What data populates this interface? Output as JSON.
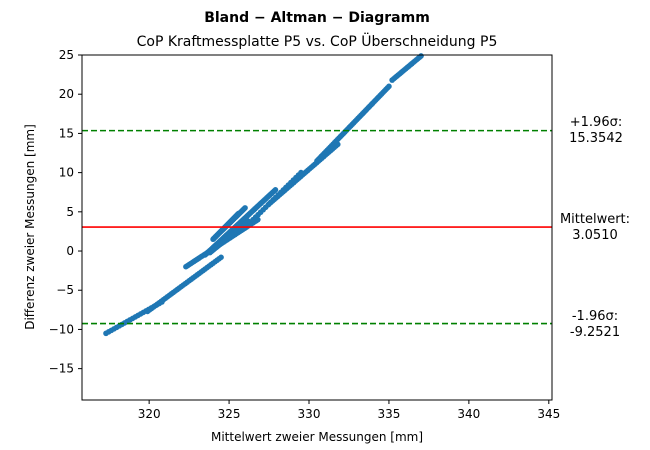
{
  "chart_data": {
    "type": "scatter",
    "title": "Bland − Altman − Diagramm",
    "subtitle": "CoP Kraftmessplatte P5 vs. CoP Überschneidung P5",
    "xlabel": "Mittelwert zweier Messungen [mm]",
    "ylabel": "Differenz zweier Messungen [mm]",
    "xlim": [
      315.8,
      345.2
    ],
    "ylim": [
      -19,
      25
    ],
    "xticks": [
      320,
      325,
      330,
      335,
      340,
      345
    ],
    "yticks": [
      -15,
      -10,
      -5,
      0,
      5,
      10,
      15,
      20,
      25
    ],
    "grid": false,
    "point_color": "#1f77b4",
    "mean_line": {
      "value": 3.051,
      "color": "#ff0000",
      "label_line1": "Mittelwert:",
      "label_line2": "3.0510"
    },
    "upper_loa": {
      "value": 15.3542,
      "color": "#008000",
      "label_line1": "+1.96σ:",
      "label_line2": "15.3542"
    },
    "lower_loa": {
      "value": -9.2521,
      "color": "#008000",
      "label_line1": "-1.96σ:",
      "label_line2": "-9.2521"
    },
    "series": [
      {
        "segments": [
          {
            "from": [
              317.3,
              -10.5
            ],
            "to": [
              320.8,
              -6.5
            ],
            "n": 22
          },
          {
            "from": [
              319.9,
              -7.7
            ],
            "to": [
              324.5,
              -0.8
            ],
            "n": 38
          },
          {
            "from": [
              322.3,
              -2.0
            ],
            "to": [
              326.8,
              4.0
            ],
            "n": 45
          },
          {
            "from": [
              323.5,
              -0.5
            ],
            "to": [
              327.9,
              7.8
            ],
            "n": 60
          },
          {
            "from": [
              324.0,
              1.5
            ],
            "to": [
              325.6,
              4.8
            ],
            "n": 40
          },
          {
            "from": [
              323.8,
              -0.2
            ],
            "to": [
              326.2,
              3.8
            ],
            "n": 40
          },
          {
            "from": [
              324.5,
              2.5
            ],
            "to": [
              326.0,
              5.5
            ],
            "n": 25
          },
          {
            "from": [
              327.5,
              6.0
            ],
            "to": [
              331.8,
              13.6
            ],
            "n": 40
          },
          {
            "from": [
              326.5,
              4.0
            ],
            "to": [
              329.5,
              10.0
            ],
            "n": 20
          },
          {
            "from": [
              330.5,
              11.5
            ],
            "to": [
              335.0,
              21.0
            ],
            "n": 50
          },
          {
            "from": [
              335.2,
              21.8
            ],
            "to": [
              337.2,
              25.2
            ],
            "n": 22
          }
        ]
      }
    ]
  }
}
